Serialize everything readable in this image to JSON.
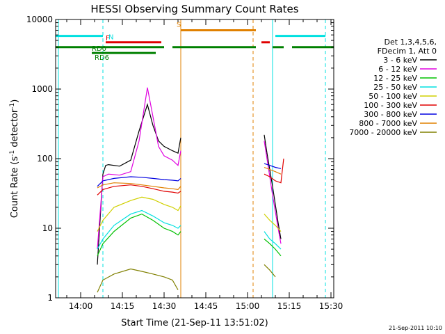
{
  "chart_data": {
    "type": "line",
    "title": "HESSI Observing Summary Count Rates",
    "xlabel": "Start Time (21-Sep-11 13:51:02)",
    "ylabel": "Count Rate (s",
    "ylabel_sup": "-1",
    "ylabel_tail": " detector",
    "ylabel_sup2": "-1",
    "ylabel_end": ")",
    "y_scale": "log",
    "xlim": [
      "13:51",
      "15:31"
    ],
    "ylim": [
      1,
      10000
    ],
    "x_ticks": [
      "14:00",
      "14:15",
      "14:30",
      "14:45",
      "15:00",
      "15:15",
      "15:30"
    ],
    "y_ticks": [
      "1",
      "10",
      "100",
      "1000",
      "10000"
    ],
    "legend_header": [
      "Det 1,3,4,5,6,",
      "FDecim 1, Att 0"
    ],
    "legend_position": "right",
    "timestamp": "21-Sep-2011 10:10",
    "series": [
      {
        "name": "3 - 6 keV",
        "color": "#000000",
        "x": [
          "14:06",
          "14:08",
          "14:09",
          "14:10",
          "14:14",
          "14:18",
          "14:21",
          "14:24",
          "14:26",
          "14:28",
          "14:30",
          "14:33",
          "14:35",
          "14:36"
        ],
        "y": [
          3,
          60,
          80,
          82,
          78,
          95,
          250,
          600,
          300,
          180,
          150,
          130,
          120,
          200
        ]
      },
      {
        "name": "6 - 12 keV",
        "color": "#e000e0",
        "x": [
          "14:06",
          "14:08",
          "14:10",
          "14:14",
          "14:18",
          "14:21",
          "14:24",
          "14:26",
          "14:28",
          "14:30",
          "14:33",
          "14:35",
          "14:36"
        ],
        "y": [
          5,
          55,
          60,
          58,
          65,
          180,
          1050,
          400,
          150,
          110,
          95,
          80,
          130
        ]
      },
      {
        "name": "12 - 25 keV",
        "color": "#00c000",
        "x": [
          "14:06",
          "14:08",
          "14:12",
          "14:18",
          "14:22",
          "14:26",
          "14:30",
          "14:33",
          "14:35",
          "14:36"
        ],
        "y": [
          4,
          6,
          9,
          14,
          16,
          13,
          10,
          9,
          8,
          9
        ]
      },
      {
        "name": "25 - 50 keV",
        "color": "#00e0e0",
        "x": [
          "14:06",
          "14:08",
          "14:12",
          "14:18",
          "14:22",
          "14:26",
          "14:30",
          "14:33",
          "14:35",
          "14:36"
        ],
        "y": [
          5,
          7,
          11,
          16,
          18,
          15,
          12,
          11,
          10,
          11
        ]
      },
      {
        "name": "50 - 100 keV",
        "color": "#d0d000",
        "x": [
          "14:06",
          "14:08",
          "14:12",
          "14:18",
          "14:22",
          "14:26",
          "14:30",
          "14:33",
          "14:35",
          "14:36"
        ],
        "y": [
          9,
          13,
          20,
          25,
          28,
          26,
          22,
          20,
          18,
          21
        ]
      },
      {
        "name": "100 - 300 keV",
        "color": "#e00000",
        "x": [
          "14:06",
          "14:08",
          "14:12",
          "14:18",
          "14:22",
          "14:26",
          "14:30",
          "14:33",
          "14:35",
          "14:36"
        ],
        "y": [
          30,
          36,
          40,
          42,
          40,
          37,
          34,
          33,
          32,
          34
        ]
      },
      {
        "name": "300 - 800 keV",
        "color": "#0000e0",
        "x": [
          "14:06",
          "14:08",
          "14:12",
          "14:18",
          "14:22",
          "14:26",
          "14:30",
          "14:33",
          "14:35",
          "14:36"
        ],
        "y": [
          40,
          48,
          52,
          55,
          54,
          52,
          50,
          49,
          48,
          52
        ]
      },
      {
        "name": "800 - 7000 keV",
        "color": "#e08000",
        "x": [
          "14:06",
          "14:08",
          "14:12",
          "14:18",
          "14:22",
          "14:26",
          "14:30",
          "14:33",
          "14:35",
          "14:36"
        ],
        "y": [
          38,
          42,
          45,
          44,
          42,
          40,
          38,
          37,
          36,
          40
        ]
      },
      {
        "name": "7000 - 20000 keV",
        "color": "#808000",
        "x": [
          "14:06",
          "14:08",
          "14:12",
          "14:18",
          "14:22",
          "14:26",
          "14:30",
          "14:33",
          "14:35"
        ],
        "y": [
          1.2,
          1.8,
          2.2,
          2.6,
          2.4,
          2.2,
          2.0,
          1.8,
          1.3
        ]
      }
    ],
    "series_segment2": [
      {
        "name": "3 - 6 keV",
        "color": "#000000",
        "x": [
          "15:06",
          "15:07",
          "15:09",
          "15:11",
          "15:12"
        ],
        "y": [
          220,
          120,
          40,
          12,
          7
        ]
      },
      {
        "name": "6 - 12 keV",
        "color": "#e000e0",
        "x": [
          "15:06",
          "15:07",
          "15:09",
          "15:11",
          "15:12"
        ],
        "y": [
          180,
          100,
          30,
          10,
          6
        ]
      },
      {
        "name": "12 - 25 keV",
        "color": "#00c000",
        "x": [
          "15:06",
          "15:08",
          "15:10",
          "15:12"
        ],
        "y": [
          7,
          6,
          5,
          4
        ]
      },
      {
        "name": "25 - 50 keV",
        "color": "#00e0e0",
        "x": [
          "15:06",
          "15:08",
          "15:10",
          "15:12"
        ],
        "y": [
          9,
          7,
          6,
          5
        ]
      },
      {
        "name": "50 - 100 keV",
        "color": "#d0d000",
        "x": [
          "15:06",
          "15:08",
          "15:10",
          "15:12"
        ],
        "y": [
          16,
          13,
          11,
          9
        ]
      },
      {
        "name": "100 - 300 keV",
        "color": "#e00000",
        "x": [
          "15:06",
          "15:08",
          "15:10",
          "15:12",
          "15:13"
        ],
        "y": [
          60,
          55,
          48,
          45,
          100
        ]
      },
      {
        "name": "300 - 800 keV",
        "color": "#0000e0",
        "x": [
          "15:06",
          "15:08",
          "15:10",
          "15:12"
        ],
        "y": [
          85,
          80,
          75,
          72
        ]
      },
      {
        "name": "800 - 7000 keV",
        "color": "#e08000",
        "x": [
          "15:06",
          "15:08",
          "15:10",
          "15:12"
        ],
        "y": [
          75,
          70,
          65,
          60
        ]
      },
      {
        "name": "7000 - 20000 keV",
        "color": "#808000",
        "x": [
          "15:06",
          "15:08",
          "15:10"
        ],
        "y": [
          3,
          2.5,
          2
        ]
      }
    ],
    "flags": [
      {
        "label": "N",
        "color": "#00e0e0",
        "level": 5800,
        "segments": [
          [
            "13:51",
            "14:08"
          ],
          [
            "15:10",
            "15:28"
          ]
        ]
      },
      {
        "label": "F",
        "color": "#e00000",
        "level": 4700,
        "segments": [
          [
            "14:09",
            "14:29"
          ],
          [
            "15:05",
            "15:08"
          ]
        ]
      },
      {
        "label": "S",
        "color": "#e08000",
        "level": 7000,
        "segments": [
          [
            "14:36",
            "15:03"
          ]
        ]
      },
      {
        "label": "RD0",
        "color": "#008000",
        "level": 4000,
        "segments": [
          [
            "13:51",
            "14:30"
          ],
          [
            "14:33",
            "15:03"
          ],
          [
            "15:09",
            "15:13"
          ],
          [
            "15:16",
            "15:31"
          ]
        ]
      },
      {
        "label": "RD6",
        "color": "#008000",
        "level": 3300,
        "segments": [
          [
            "14:04",
            "14:27"
          ]
        ]
      }
    ],
    "vlines": [
      {
        "x": "13:52",
        "color": "#00e0e0",
        "style": "solid"
      },
      {
        "x": "14:08",
        "color": "#00e0e0",
        "style": "dashed"
      },
      {
        "x": "14:36",
        "color": "#e08000",
        "style": "solid"
      },
      {
        "x": "15:02",
        "color": "#e08000",
        "style": "dashed"
      },
      {
        "x": "15:09",
        "color": "#00e0e0",
        "style": "solid"
      },
      {
        "x": "15:28",
        "color": "#00e0e0",
        "style": "dashed"
      }
    ]
  }
}
